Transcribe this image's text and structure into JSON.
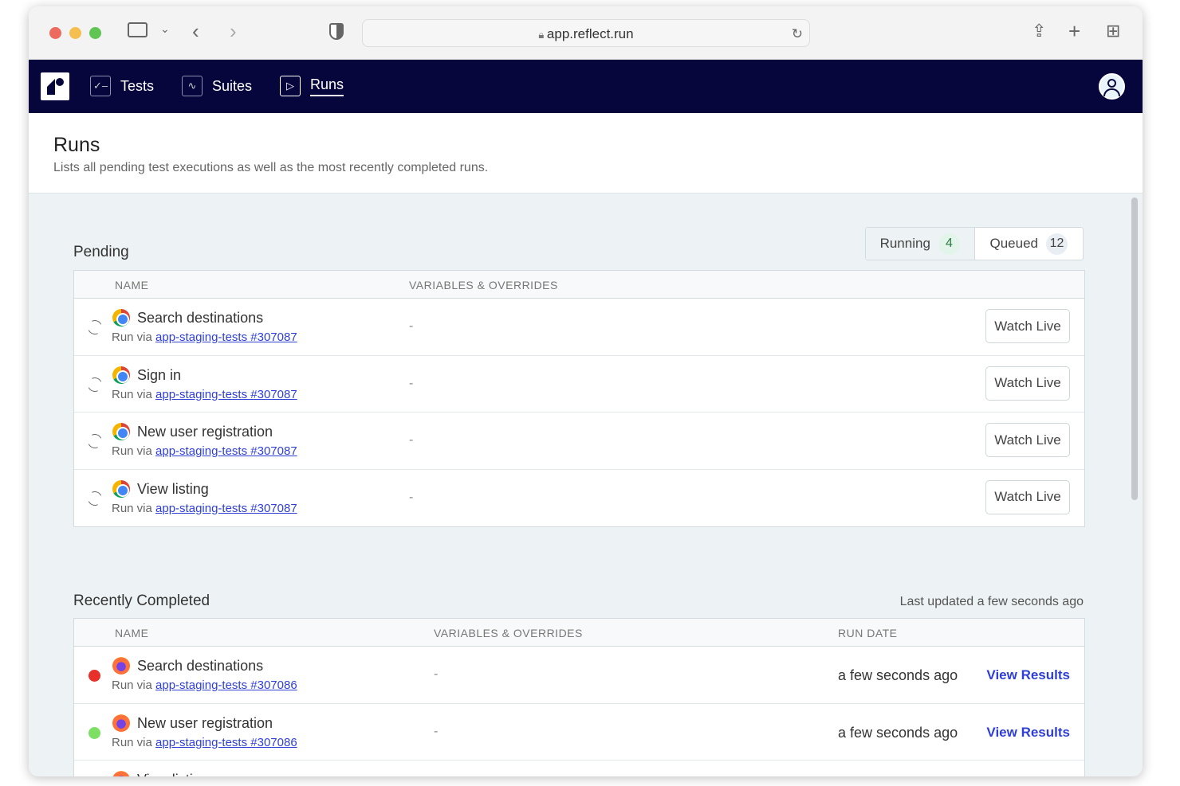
{
  "browser": {
    "url": "app.reflect.run"
  },
  "nav": {
    "items": [
      {
        "label": "Tests"
      },
      {
        "label": "Suites"
      },
      {
        "label": "Runs"
      }
    ],
    "active": "Runs"
  },
  "page": {
    "title": "Runs",
    "subtitle": "Lists all pending test executions as well as the most recently completed runs."
  },
  "pending": {
    "title": "Pending",
    "tabs": [
      {
        "label": "Running",
        "count": "4"
      },
      {
        "label": "Queued",
        "count": "12"
      }
    ],
    "columns": [
      "NAME",
      "VARIABLES & OVERRIDES"
    ],
    "rows": [
      {
        "name": "Search destinations",
        "via": "Run via",
        "link": "app-staging-tests #307087",
        "vars": "-",
        "action": "Watch Live",
        "browser": "chrome"
      },
      {
        "name": "Sign in",
        "via": "Run via",
        "link": "app-staging-tests #307087",
        "vars": "-",
        "action": "Watch Live",
        "browser": "chrome"
      },
      {
        "name": "New user registration",
        "via": "Run via",
        "link": "app-staging-tests #307087",
        "vars": "-",
        "action": "Watch Live",
        "browser": "chrome"
      },
      {
        "name": "View listing",
        "via": "Run via",
        "link": "app-staging-tests #307087",
        "vars": "-",
        "action": "Watch Live",
        "browser": "chrome"
      }
    ]
  },
  "completed": {
    "title": "Recently Completed",
    "updated": "Last updated a few seconds ago",
    "columns": [
      "NAME",
      "VARIABLES & OVERRIDES",
      "RUN DATE"
    ],
    "rows": [
      {
        "name": "Search destinations",
        "via": "Run via",
        "link": "app-staging-tests #307086",
        "vars": "-",
        "date": "a few seconds ago",
        "action": "View Results",
        "status": "failed",
        "status_color": "#e8302a",
        "browser": "firefox"
      },
      {
        "name": "New user registration",
        "via": "Run via",
        "link": "app-staging-tests #307086",
        "vars": "-",
        "date": "a few seconds ago",
        "action": "View Results",
        "status": "passed",
        "status_color": "#7ddf64",
        "browser": "firefox"
      },
      {
        "name": "View listing",
        "browser": "firefox"
      }
    ]
  },
  "colors": {
    "nav_bg": "#06063d",
    "link": "#2f3fd6",
    "running_badge": "#e3f5ea",
    "queued_badge": "#e8eef3"
  }
}
